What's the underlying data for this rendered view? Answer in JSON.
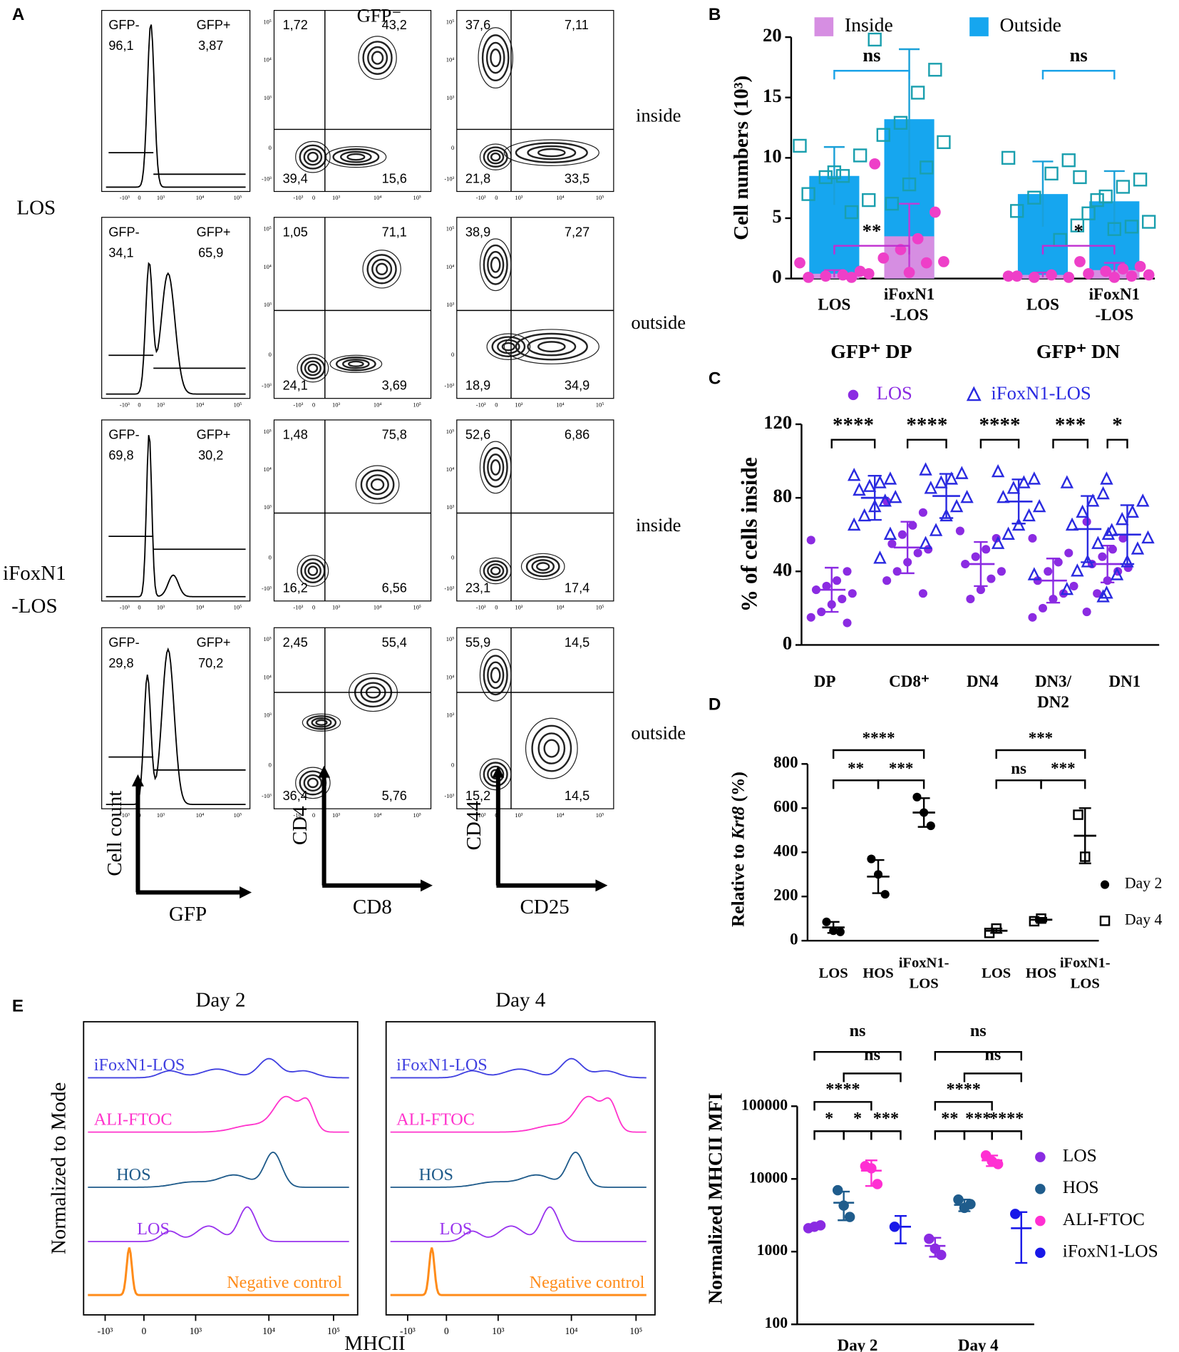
{
  "panel_labels": [
    "A",
    "B",
    "C",
    "D",
    "E"
  ],
  "panel_a": {
    "header": "GFP⁻",
    "groups": [
      [
        "LOS"
      ],
      [
        "iFoxN1",
        "-LOS"
      ]
    ],
    "rows": [
      {
        "gate_labels": [
          "GFP-",
          "GFP+"
        ],
        "gate_values": [
          "96,1",
          "3,87"
        ],
        "cd4_cd8": [
          "1,72",
          "43,2",
          "39,4",
          "15,6"
        ],
        "cd44_cd25": [
          "37,6",
          "7,11",
          "21,8",
          "33,5"
        ],
        "side": "inside"
      },
      {
        "gate_labels": [
          "GFP-",
          "GFP+"
        ],
        "gate_values": [
          "34,1",
          "65,9"
        ],
        "cd4_cd8": [
          "1,05",
          "71,1",
          "24,1",
          "3,69"
        ],
        "cd44_cd25": [
          "38,9",
          "7,27",
          "18,9",
          "34,9"
        ],
        "side": "outside"
      },
      {
        "gate_labels": [
          "GFP-",
          "GFP+"
        ],
        "gate_values": [
          "69,8",
          "30,2"
        ],
        "cd4_cd8": [
          "1,48",
          "75,8",
          "16,2",
          "6,56"
        ],
        "cd44_cd25": [
          "52,6",
          "6,86",
          "23,1",
          "17,4"
        ],
        "side": "inside"
      },
      {
        "gate_labels": [
          "GFP-",
          "GFP+"
        ],
        "gate_values": [
          "29,8",
          "70,2"
        ],
        "cd4_cd8": [
          "2,45",
          "55,4",
          "36,4",
          "5,76"
        ],
        "cd44_cd25": [
          "55,9",
          "14,5",
          "15,2",
          "14,5"
        ],
        "side": "outside"
      }
    ],
    "tick_labels_x": [
      "-10³",
      "0",
      "10³",
      "10⁴",
      "10⁵"
    ],
    "tick_labels_y": [
      "10⁵",
      "10⁴",
      "10³",
      "0",
      "-10³"
    ],
    "axes": [
      {
        "y": "Cell count",
        "x": "GFP"
      },
      {
        "y": "CD4",
        "x": "CD8"
      },
      {
        "y": "CD44",
        "x": "CD25"
      }
    ]
  },
  "chart_data": [
    {
      "type": "bar",
      "ylabel": "Cell numbers (10³)",
      "categories": [
        [
          "LOS"
        ],
        [
          "iFoxN1",
          "-LOS"
        ],
        [
          "LOS"
        ],
        [
          "iFoxN1",
          "-LOS"
        ]
      ],
      "groups": [
        "GFP⁺ DP",
        "GFP⁺ DN"
      ],
      "ylim": [
        0,
        20
      ],
      "yticks": [
        0,
        5,
        10,
        15,
        20
      ],
      "series": [
        {
          "name": "Inside",
          "color": "#d68ee2",
          "point_color": "#ee3fc8",
          "values": [
            0.4,
            3.5,
            0.3,
            0.7
          ],
          "errors": [
            0.3,
            2.7,
            0.2,
            0.6
          ],
          "points": [
            [
              1.3,
              0.6,
              0.3,
              0.2,
              0.1,
              0.4,
              0.1
            ],
            [
              9.5,
              5.5,
              3.3,
              2.4,
              1.7,
              1.4,
              1.3,
              0.5
            ],
            [
              0.2,
              0.1,
              0.3,
              0.1,
              0.2
            ],
            [
              1.4,
              1.0,
              0.8,
              0.6,
              0.4,
              0.3,
              0.2,
              0.1
            ]
          ]
        },
        {
          "name": "Outside",
          "color": "#16a6ef",
          "point_color": "#1a9fae",
          "values": [
            8.5,
            13.2,
            7.0,
            6.4
          ],
          "errors": [
            2.4,
            5.8,
            2.7,
            2.5
          ],
          "points": [
            [
              11,
              10.2,
              8.5,
              8.4,
              7,
              6.5,
              5.5,
              8.8
            ],
            [
              19.8,
              17.3,
              15.4,
              12.9,
              11.9,
              11.3,
              9.2,
              7.8,
              6.2
            ],
            [
              10,
              9.8,
              8.7,
              6.7,
              5.6,
              4.4,
              3.2
            ],
            [
              8.4,
              8.2,
              7.6,
              6.8,
              5.4,
              4.7,
              4.3,
              4.1,
              6.5
            ]
          ]
        }
      ],
      "annotations": [
        "ns",
        "ns",
        "**",
        "*"
      ]
    },
    {
      "type": "dot",
      "ylabel": "% of cells inside",
      "categories": [
        [
          "DP"
        ],
        [
          "CD8⁺"
        ],
        [
          "DN4"
        ],
        [
          "DN3/",
          "DN2"
        ],
        [
          "DN1"
        ]
      ],
      "ylim": [
        0,
        120
      ],
      "yticks": [
        0,
        40,
        80,
        120
      ],
      "series": [
        {
          "name": "LOS",
          "color": "#8b2be2",
          "marker": "circle",
          "values": [
            30,
            53,
            44,
            35,
            44
          ],
          "errors": [
            12,
            14,
            12,
            12,
            10
          ],
          "points": [
            [
              57,
              40,
              35,
              32,
              30,
              28,
              25,
              22,
              18,
              15,
              12
            ],
            [
              78,
              72,
              65,
              60,
              55,
              52,
              50,
              45,
              40,
              35,
              28
            ],
            [
              62,
              58,
              52,
              48,
              44,
              40,
              36,
              30,
              25
            ],
            [
              58,
              50,
              45,
              40,
              35,
              32,
              28,
              25,
              20,
              15
            ],
            [
              67,
              58,
              52,
              48,
              44,
              42,
              40,
              35,
              28,
              18
            ]
          ]
        },
        {
          "name": "iFoxN1-LOS",
          "color": "#2a2ae0",
          "marker": "triangle",
          "values": [
            80,
            81,
            78,
            63,
            60
          ],
          "errors": [
            12,
            12,
            12,
            18,
            16
          ],
          "points": [
            [
              92,
              90,
              88,
              86,
              84,
              80,
              78,
              75,
              70,
              65,
              60,
              47
            ],
            [
              95,
              93,
              90,
              88,
              85,
              80,
              75,
              70,
              62,
              55
            ],
            [
              94,
              90,
              88,
              85,
              80,
              75,
              70,
              65,
              60,
              55,
              38
            ],
            [
              88,
              82,
              78,
              72,
              65,
              60,
              55,
              45,
              40,
              30,
              26
            ],
            [
              90,
              78,
              72,
              68,
              62,
              58,
              52,
              45,
              38,
              28
            ]
          ]
        }
      ],
      "annotations": [
        "****",
        "****",
        "****",
        "***",
        "*"
      ]
    },
    {
      "type": "dot",
      "ylabel": [
        "Relative to ",
        "Krt8",
        " (%)"
      ],
      "categories": [
        [
          "LOS"
        ],
        [
          "HOS"
        ],
        [
          "iFoxN1-",
          "LOS"
        ],
        [
          "LOS"
        ],
        [
          "HOS"
        ],
        [
          "iFoxN1-",
          "LOS"
        ]
      ],
      "ylim": [
        0,
        800
      ],
      "yticks": [
        0,
        200,
        400,
        600,
        800
      ],
      "series": [
        {
          "name": "Day 2",
          "color": "#000000",
          "marker": "circle",
          "values": [
            60,
            290,
            580,
            null,
            null,
            null
          ],
          "errors": [
            25,
            75,
            65,
            null,
            null,
            null
          ],
          "points": [
            [
              85,
              45,
              40
            ],
            [
              370,
              300,
              210
            ],
            [
              650,
              580,
              520
            ],
            null,
            null,
            null
          ]
        },
        {
          "name": "Day 4",
          "color": "#000000",
          "marker": "square",
          "values": [
            null,
            null,
            null,
            45,
            95,
            475
          ],
          "errors": [
            null,
            null,
            null,
            10,
            8,
            125
          ],
          "points": [
            null,
            null,
            null,
            [
              35,
              55
            ],
            [
              88,
              100
            ],
            [
              570,
              380
            ]
          ]
        }
      ],
      "annotations": [
        "****",
        "**",
        "***",
        "***",
        "ns",
        "***"
      ]
    },
    {
      "type": "dot",
      "log": true,
      "ylabel": "Normalized MHCII MFI",
      "categories": [
        "Day 2",
        "Day 4"
      ],
      "ylim": [
        100,
        100000
      ],
      "yticks": [
        100,
        1000,
        10000,
        100000
      ],
      "series": [
        {
          "name": "LOS",
          "color": "#8a2be2",
          "marker": "circle",
          "values": [
            2200,
            1200
          ],
          "errors": [
            150,
            350
          ],
          "points": [
            [
              2100,
              2200,
              2300
            ],
            [
              1500,
              1100,
              900
            ]
          ]
        },
        {
          "name": "HOS",
          "color": "#1f5c8c",
          "marker": "circle",
          "values": [
            4700,
            4400
          ],
          "errors": [
            2000,
            800
          ],
          "points": [
            [
              7000,
              4300,
              3000
            ],
            [
              5200,
              4000,
              4500
            ]
          ]
        },
        {
          "name": "ALI-FTOC",
          "color": "#ff2fd2",
          "marker": "circle",
          "values": [
            13000,
            18000
          ],
          "errors": [
            5000,
            3000
          ],
          "points": [
            [
              15000,
              14000,
              8500
            ],
            [
              21000,
              17500,
              16000
            ]
          ]
        },
        {
          "name": "iFoxN1-LOS",
          "color": "#1818e8",
          "marker": "circle",
          "values": [
            2200,
            2100
          ],
          "errors": [
            900,
            1400
          ],
          "points": [
            [
              2200
            ],
            [
              3300
            ]
          ]
        }
      ],
      "annotations": [
        [
          "ns",
          "ns",
          "****",
          "*",
          "*",
          "***"
        ],
        [
          "ns",
          "ns",
          "****",
          "**",
          "***",
          "****"
        ]
      ]
    }
  ],
  "panel_e_histograms": {
    "days": [
      "Day 2",
      "Day 4"
    ],
    "samples": [
      {
        "name": "iFoxN1-LOS",
        "color": "#4040e0"
      },
      {
        "name": "ALI-FTOC",
        "color": "#ff33cc"
      },
      {
        "name": "HOS",
        "color": "#1e5a8a"
      },
      {
        "name": "LOS",
        "color": "#9933ee"
      },
      {
        "name": "Negative control",
        "color": "#ff8c1a"
      }
    ],
    "xticks": [
      "-10³",
      "0",
      "10³",
      "10⁴",
      "10⁵"
    ],
    "ylabel": "Normalized to Mode",
    "xlabel": "MHCII"
  }
}
